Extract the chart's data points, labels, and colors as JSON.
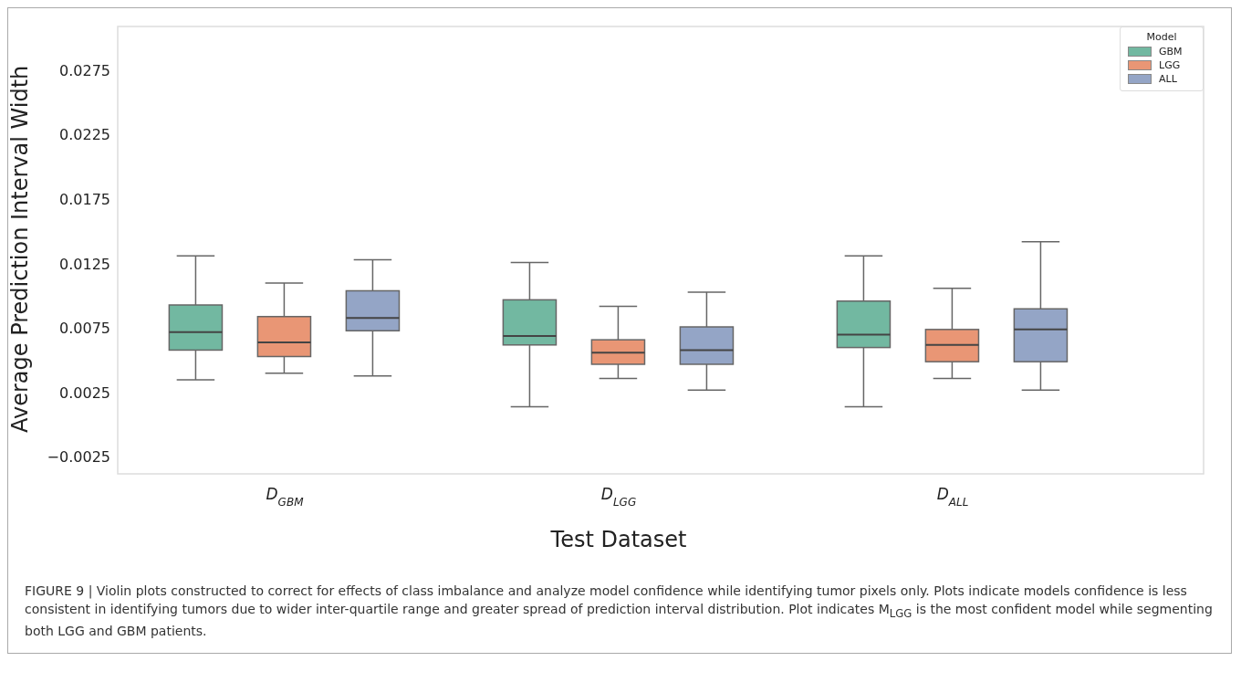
{
  "chart_data": {
    "type": "box",
    "xlabel": "Test Dataset",
    "ylabel": "Average Prediction Interval Width",
    "legend_title": "Model",
    "legend": "top right",
    "categories": [
      "D$_{GBM}$",
      "D$_{LGG}$",
      "D$_{ALL}$"
    ],
    "ylim": [
      -0.0038,
      0.0309
    ],
    "yticks": [
      -0.0025,
      0.0025,
      0.0075,
      0.0125,
      0.0175,
      0.0225,
      0.0275
    ],
    "series": [
      {
        "name": "GBM",
        "color": "#72b8a1",
        "boxes": [
          {
            "low": 0.0035,
            "q1": 0.0058,
            "median": 0.0072,
            "q3": 0.0093,
            "high": 0.0131
          },
          {
            "low": 0.0014,
            "q1": 0.0062,
            "median": 0.0069,
            "q3": 0.0097,
            "high": 0.0126
          },
          {
            "low": 0.0014,
            "q1": 0.006,
            "median": 0.007,
            "q3": 0.0096,
            "high": 0.0131
          }
        ]
      },
      {
        "name": "LGG",
        "color": "#e99675",
        "boxes": [
          {
            "low": 0.004,
            "q1": 0.0053,
            "median": 0.0064,
            "q3": 0.0084,
            "high": 0.011
          },
          {
            "low": 0.0036,
            "q1": 0.0047,
            "median": 0.0056,
            "q3": 0.0066,
            "high": 0.0092
          },
          {
            "low": 0.0036,
            "q1": 0.0049,
            "median": 0.0062,
            "q3": 0.0074,
            "high": 0.0106
          }
        ]
      },
      {
        "name": "ALL",
        "color": "#94a5c6",
        "boxes": [
          {
            "low": 0.0038,
            "q1": 0.0073,
            "median": 0.0083,
            "q3": 0.0104,
            "high": 0.0128
          },
          {
            "low": 0.0027,
            "q1": 0.0047,
            "median": 0.0058,
            "q3": 0.0076,
            "high": 0.0103
          },
          {
            "low": 0.0027,
            "q1": 0.0049,
            "median": 0.0074,
            "q3": 0.009,
            "high": 0.0142
          }
        ]
      }
    ],
    "annotations": [
      "FIGURE 9 | Violin plots constructed to correct for effects of class imbalance and analyze model confidence while identifying tumor pixels only. Plots indicate models confidence is less consistent in identifying tumors due to wider inter-quartile range and greater spread of prediction interval distribution. Plot indicates M$_{LGG}$ is the most confident model while segmenting both LGG and GBM patients."
    ]
  }
}
